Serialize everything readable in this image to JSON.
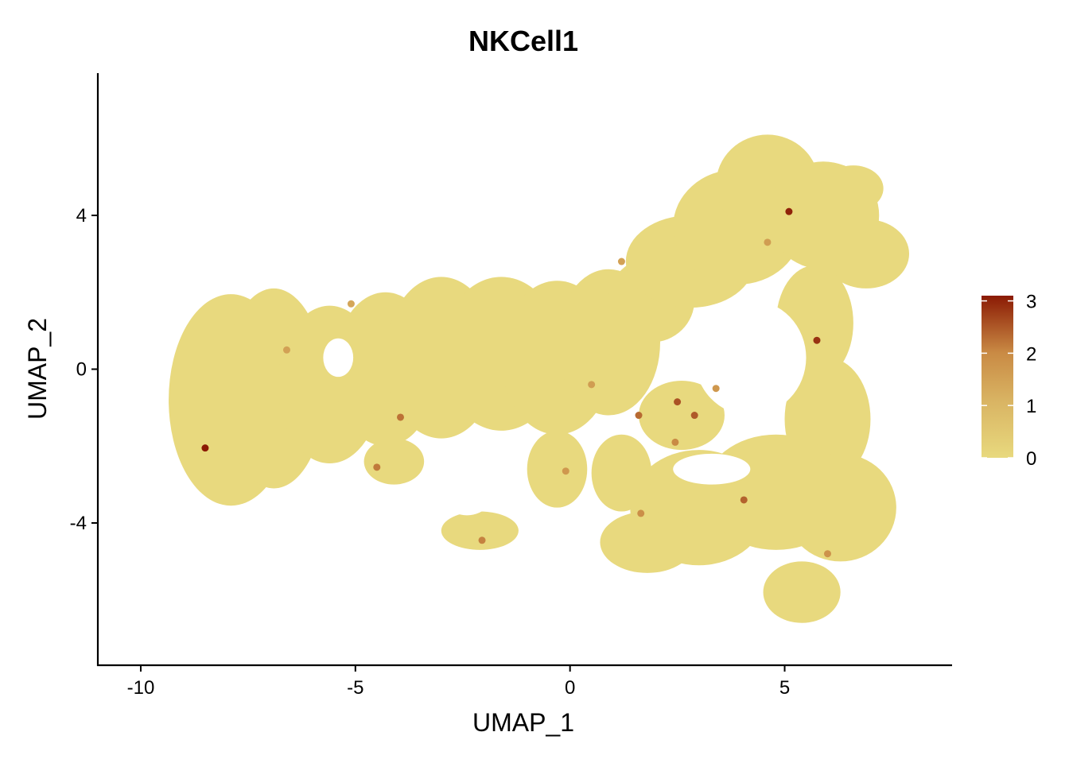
{
  "chart_data": {
    "type": "scatter",
    "title": "NKCell1",
    "xlabel": "UMAP_1",
    "ylabel": "UMAP_2",
    "xlim": [
      -11,
      8.9
    ],
    "ylim": [
      -7.7,
      7.7
    ],
    "x_ticks": [
      -10,
      -5,
      0,
      5
    ],
    "x_tick_labels": [
      "-10",
      "-5",
      "0",
      "5"
    ],
    "y_ticks": [
      -4,
      0,
      4
    ],
    "y_tick_labels": [
      "-4",
      "0",
      "4"
    ],
    "grid": false,
    "legend": {
      "placement": "right",
      "type": "colorbar",
      "range": [
        0,
        3.1
      ],
      "ticks": [
        0,
        1,
        2,
        3
      ],
      "tick_labels": [
        "0",
        "1",
        "2",
        "3"
      ]
    },
    "colors": {
      "low": "#e8d97e",
      "mid": "#c98a44",
      "high": "#8b1a04"
    },
    "highlighted_points": [
      {
        "x": -8.5,
        "y": -2.05,
        "value": 3.1
      },
      {
        "x": 5.1,
        "y": 4.1,
        "value": 3.0
      },
      {
        "x": 5.75,
        "y": 0.75,
        "value": 2.8
      },
      {
        "x": 2.5,
        "y": -0.85,
        "value": 2.4
      },
      {
        "x": 2.9,
        "y": -1.2,
        "value": 2.3
      },
      {
        "x": 1.6,
        "y": -1.2,
        "value": 2.1
      },
      {
        "x": -3.95,
        "y": -1.25,
        "value": 2.0
      },
      {
        "x": 4.05,
        "y": -3.4,
        "value": 2.2
      },
      {
        "x": -4.5,
        "y": -2.55,
        "value": 1.9
      },
      {
        "x": -2.05,
        "y": -4.45,
        "value": 1.8
      },
      {
        "x": 2.45,
        "y": -1.9,
        "value": 1.7
      },
      {
        "x": 1.65,
        "y": -3.75,
        "value": 1.6
      },
      {
        "x": 6.0,
        "y": -4.8,
        "value": 1.5
      },
      {
        "x": -6.6,
        "y": 0.5,
        "value": 1.2
      },
      {
        "x": 0.5,
        "y": -0.4,
        "value": 1.3
      },
      {
        "x": 3.4,
        "y": -0.5,
        "value": 1.4
      },
      {
        "x": -5.1,
        "y": 1.7,
        "value": 1.1
      },
      {
        "x": 1.2,
        "y": 2.8,
        "value": 1.2
      },
      {
        "x": 4.6,
        "y": 3.3,
        "value": 1.3
      },
      {
        "x": -0.1,
        "y": -2.65,
        "value": 1.4
      }
    ]
  }
}
